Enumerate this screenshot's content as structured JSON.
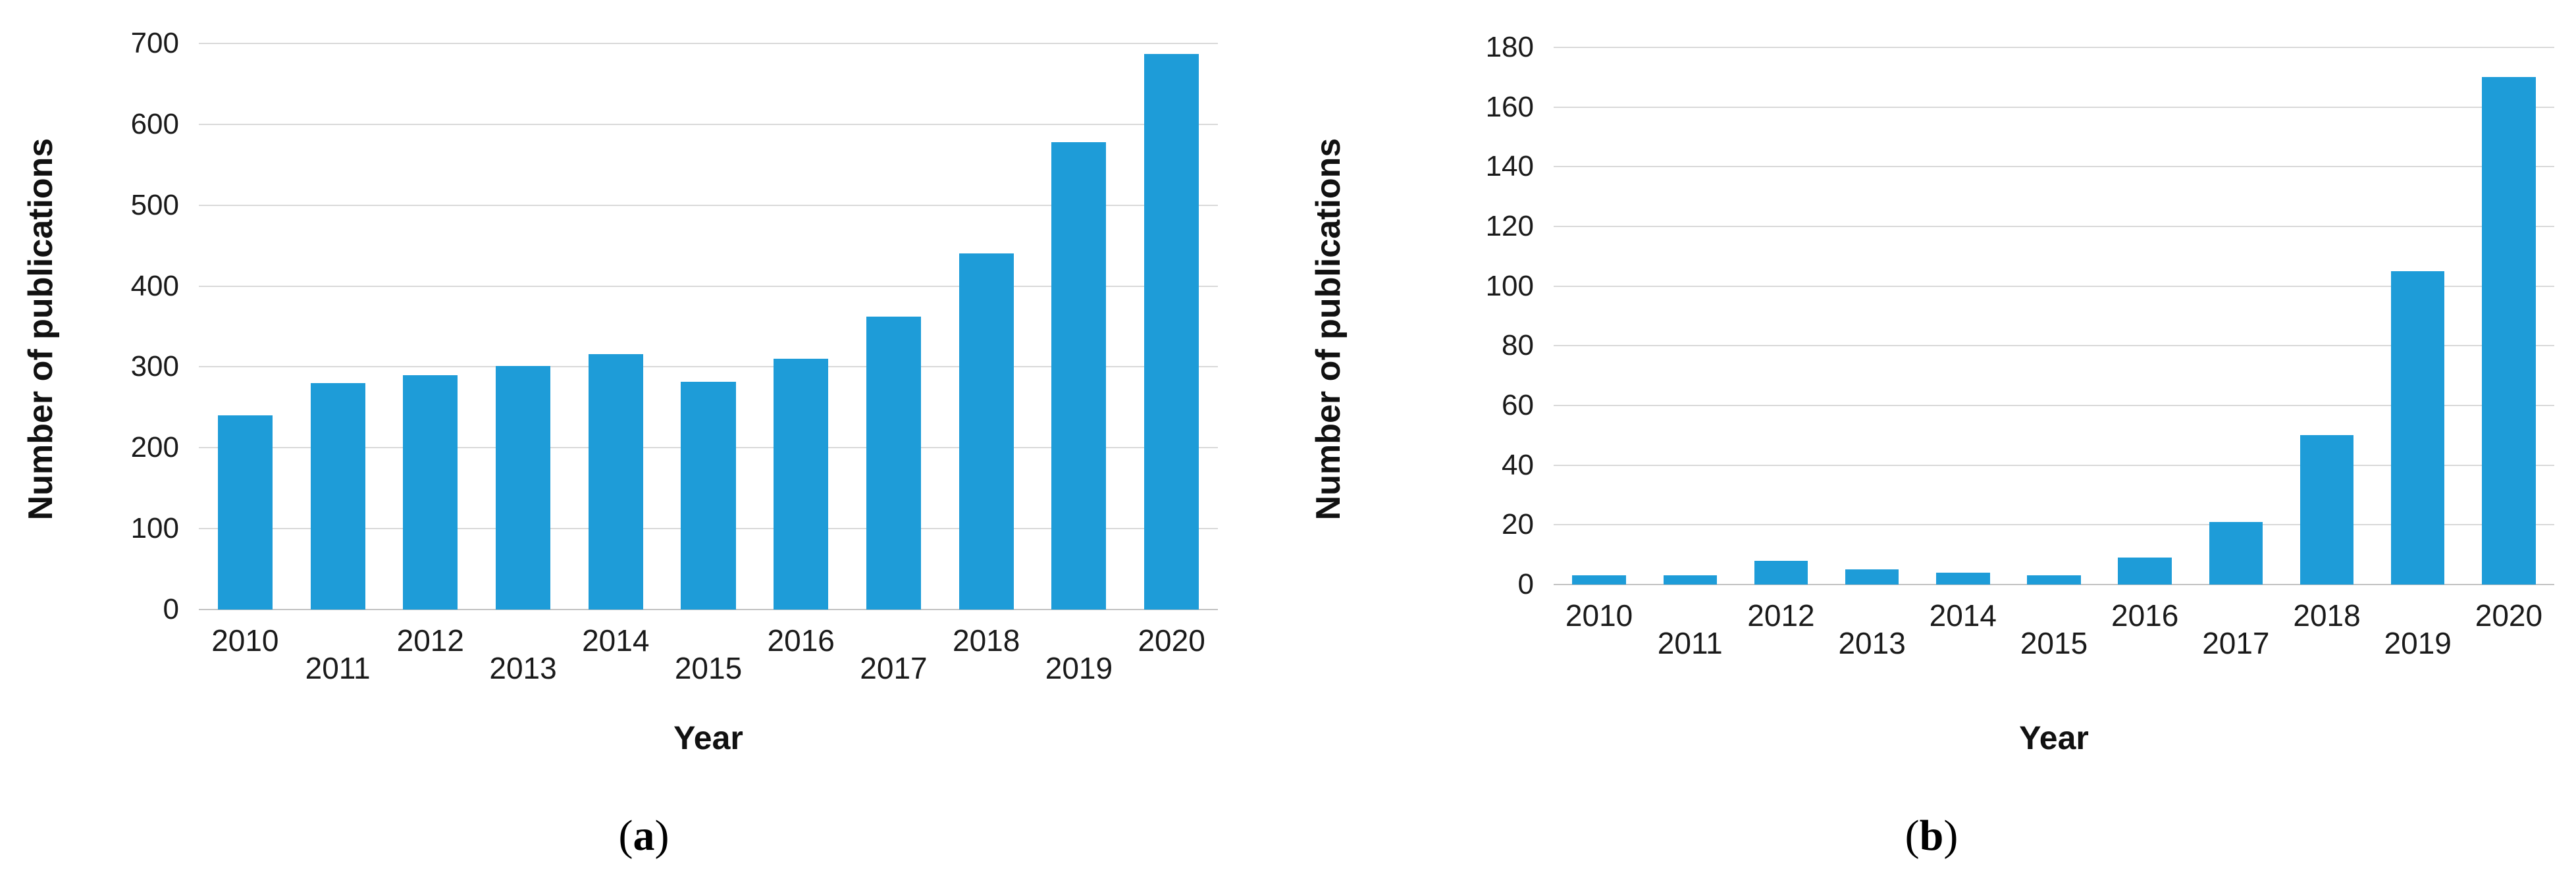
{
  "page": {
    "background": "#ffffff"
  },
  "figure": {
    "panels": [
      {
        "caption_open": "(",
        "caption_letter": "a",
        "caption_close": ")"
      },
      {
        "caption_open": "(",
        "caption_letter": "b",
        "caption_close": ")"
      }
    ]
  },
  "chart_data": [
    {
      "type": "bar",
      "title": "",
      "categories": [
        "2010",
        "2011",
        "2012",
        "2013",
        "2014",
        "2015",
        "2016",
        "2017",
        "2018",
        "2019",
        "2020"
      ],
      "values": [
        240,
        280,
        290,
        301,
        316,
        282,
        310,
        362,
        440,
        578,
        687
      ],
      "xlabel": "Year",
      "ylabel": "Number of publications",
      "ylim": [
        0,
        700
      ],
      "ytick_step": 100,
      "grid": true,
      "legend": false,
      "x_labels_staggered": true,
      "bar_color": "#1E9CD8",
      "grid_color": "#D9D9D9",
      "baseline_color": "#C3C3C3"
    },
    {
      "type": "bar",
      "title": "",
      "categories": [
        "2010",
        "2011",
        "2012",
        "2013",
        "2014",
        "2015",
        "2016",
        "2017",
        "2018",
        "2019",
        "2020"
      ],
      "values": [
        3,
        3,
        8,
        5,
        4,
        3,
        9,
        21,
        50,
        105,
        170
      ],
      "xlabel": "Year",
      "ylabel": "Number of publications",
      "ylim": [
        0,
        180
      ],
      "ytick_step": 20,
      "grid": true,
      "legend": false,
      "x_labels_staggered": true,
      "bar_color": "#1E9CD8",
      "grid_color": "#D9D9D9",
      "baseline_color": "#C3C3C3"
    }
  ]
}
